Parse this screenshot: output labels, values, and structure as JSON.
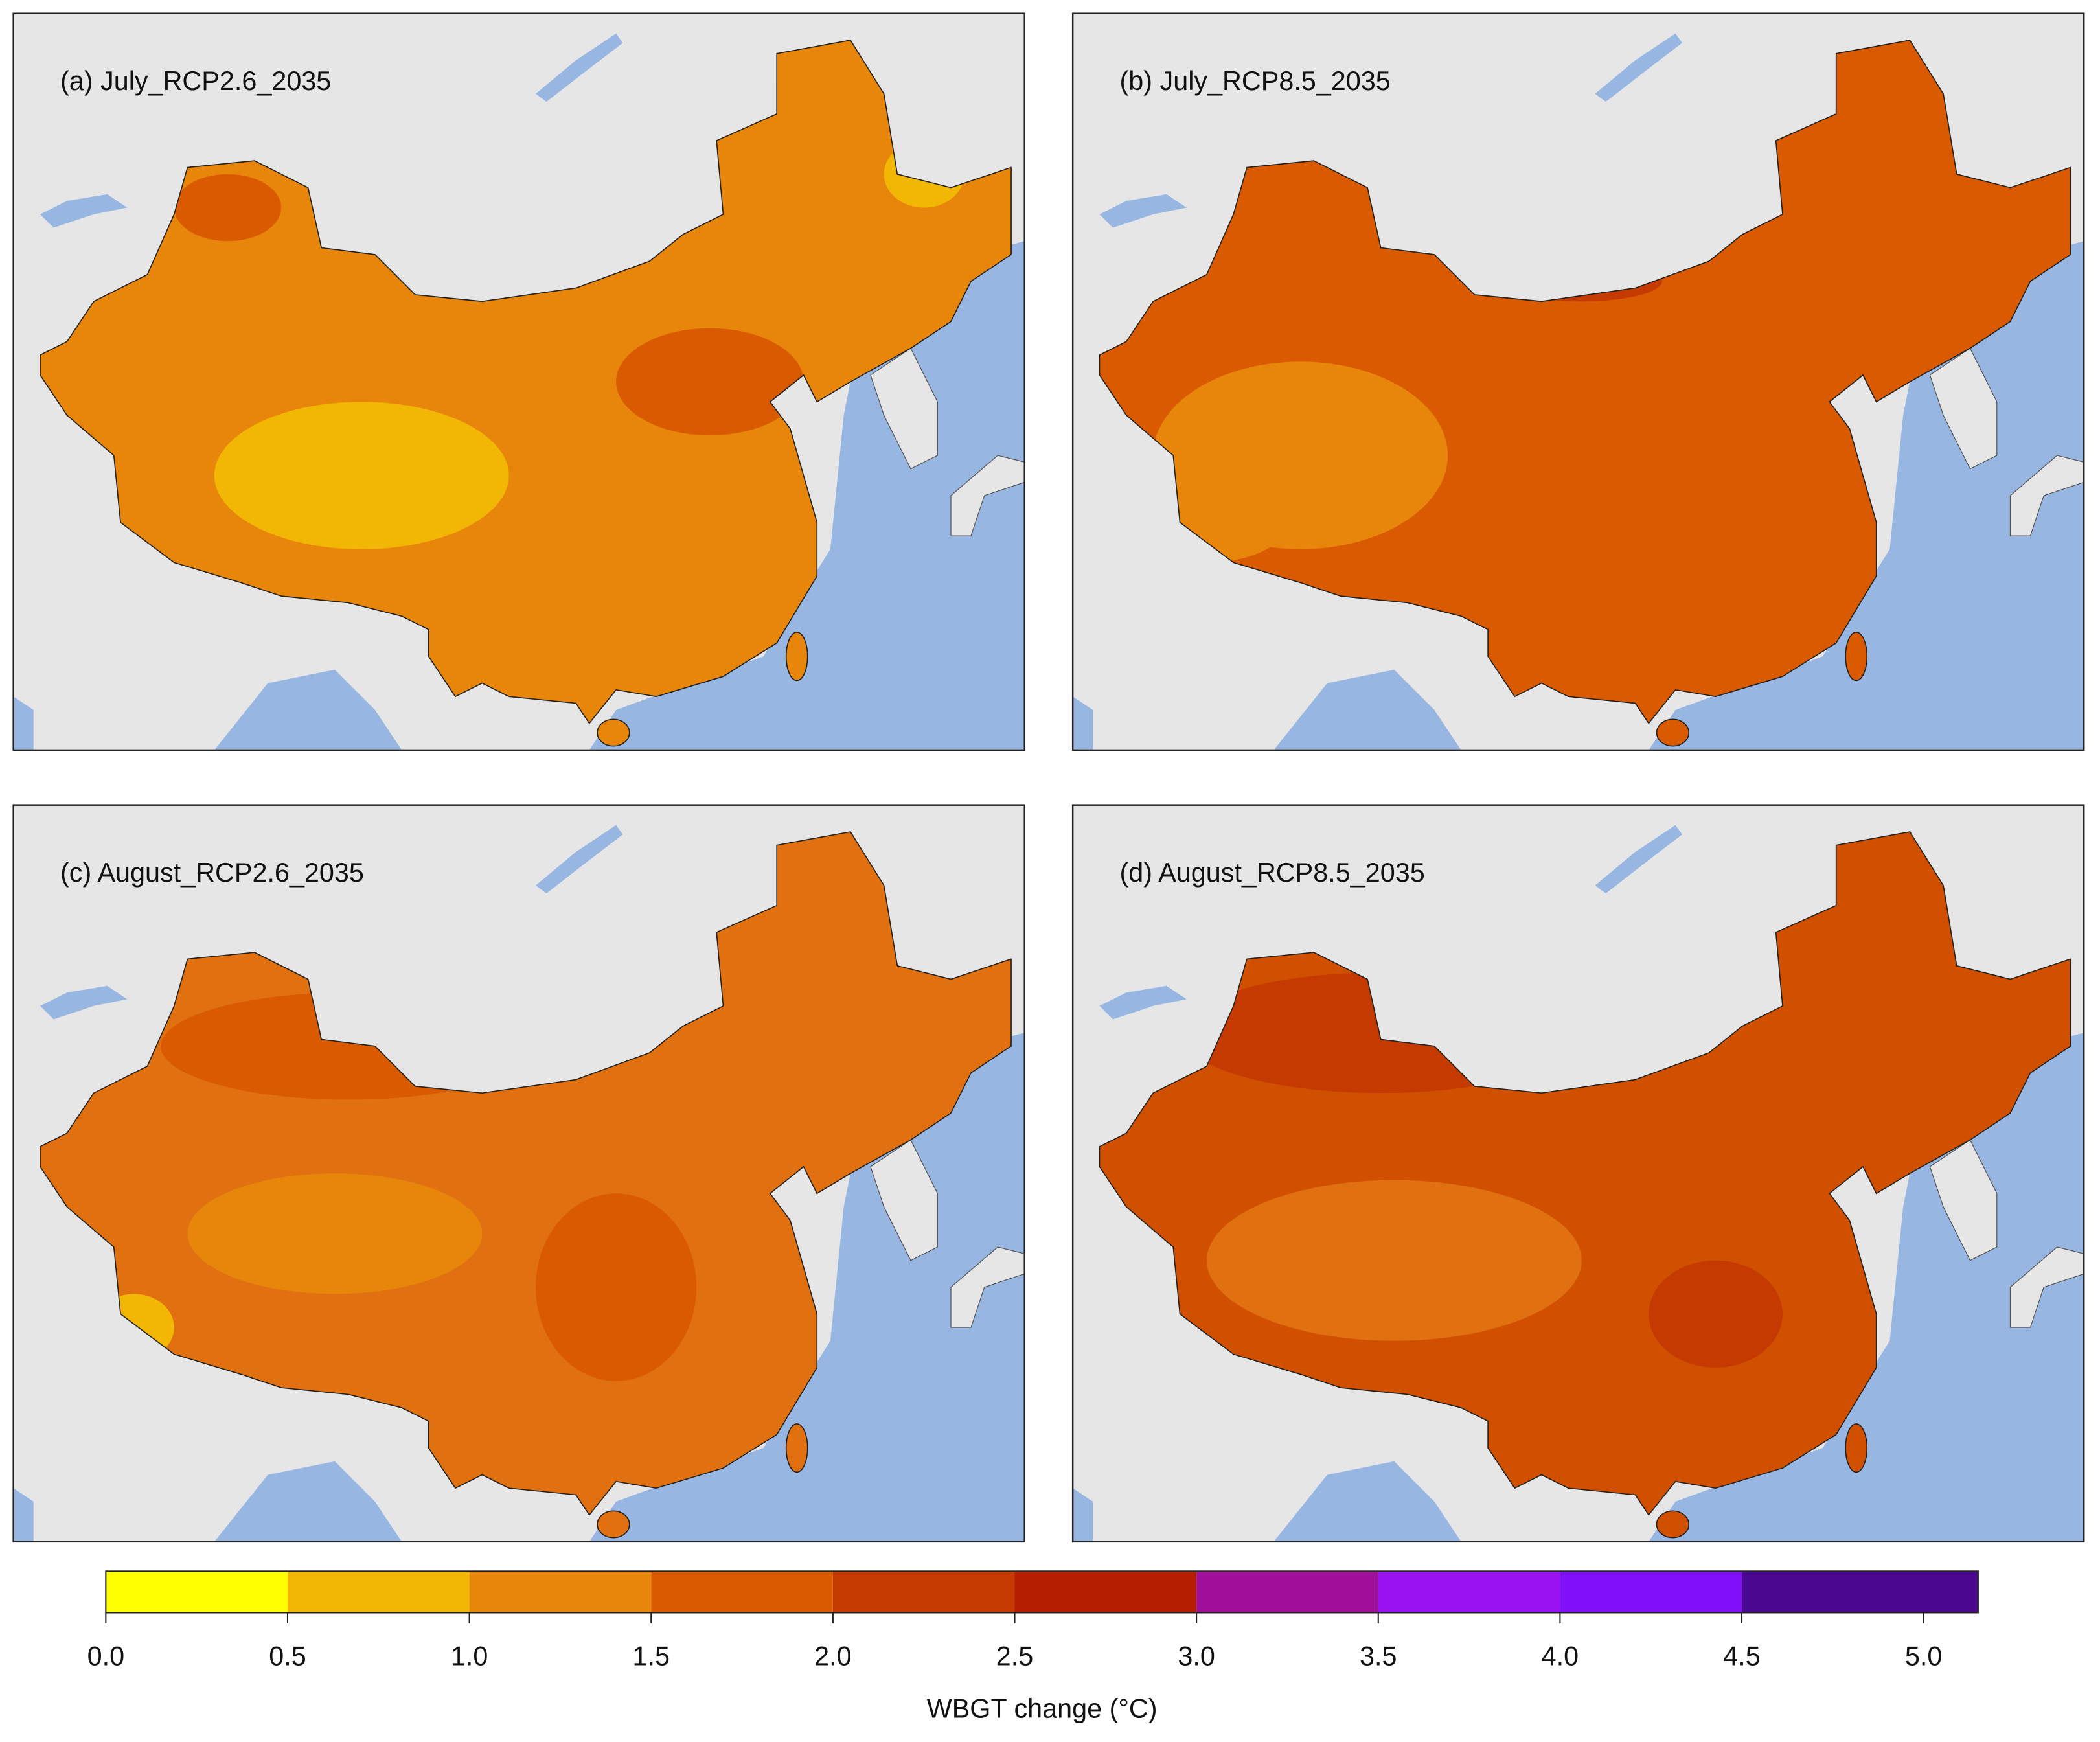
{
  "panels": [
    {
      "title": "(a) July_RCP2.6_2035"
    },
    {
      "title": "(b) July_RCP8.5_2035"
    },
    {
      "title": "(c) August_RCP2.6_2035"
    },
    {
      "title": "(d) August_RCP8.5_2035"
    }
  ],
  "colorbar": {
    "label": "WBGT change (°C)",
    "bins": [
      0,
      0.5,
      1.0,
      1.5,
      2.0,
      2.5,
      3.0,
      3.5,
      4.0,
      4.5,
      5.15
    ],
    "colors": [
      "#ffff00",
      "#f2b705",
      "#e8860c",
      "#d95a00",
      "#c43a00",
      "#b51f00",
      "#a0109a",
      "#9a12f0",
      "#8010f8",
      "#4a0890"
    ],
    "ticks": [
      {
        "value": 0,
        "label": "0.0"
      },
      {
        "value": 0.5,
        "label": "0.5"
      },
      {
        "value": 1.0,
        "label": "1.0"
      },
      {
        "value": 1.5,
        "label": "1.5"
      },
      {
        "value": 2.0,
        "label": "2.0"
      },
      {
        "value": 2.5,
        "label": "2.5"
      },
      {
        "value": 3.0,
        "label": "3.0"
      },
      {
        "value": 3.5,
        "label": "3.5"
      },
      {
        "value": 4.0,
        "label": "4.0"
      },
      {
        "value": 4.5,
        "label": "4.5"
      },
      {
        "value": 5.0,
        "label": "5.0"
      }
    ]
  }
}
